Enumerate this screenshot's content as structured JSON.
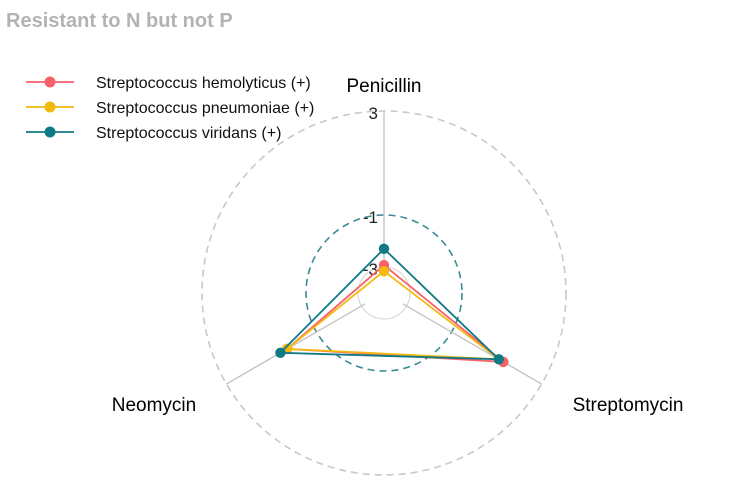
{
  "chart_data": {
    "type": "radar",
    "title": "Resistant to N but not P",
    "axes": [
      "Penicillin",
      "Streptomycin",
      "Neomycin"
    ],
    "scale": "log10",
    "rlim": [
      -4,
      3
    ],
    "rticks": [
      {
        "label": "3",
        "value": 3
      },
      {
        "label": "-1",
        "value": -1
      },
      {
        "label": "-3",
        "value": -3
      }
    ],
    "dashed_ring_values": [
      3,
      -1
    ],
    "highlight_ring_value": -1,
    "legend_position": "top-left",
    "series": [
      {
        "name": "Streptococcus hemolyticus (+)",
        "color": "#f8616a",
        "values": [
          -2.93,
          1.3,
          0.3
        ]
      },
      {
        "name": "Streptococcus pneumoniae (+)",
        "color": "#f2b90f",
        "values": [
          -3.16,
          1.1,
          0.3
        ]
      },
      {
        "name": "Streptococcus viridans (+)",
        "color": "#0f7a86",
        "values": [
          -2.3,
          1.1,
          0.6
        ]
      }
    ]
  }
}
